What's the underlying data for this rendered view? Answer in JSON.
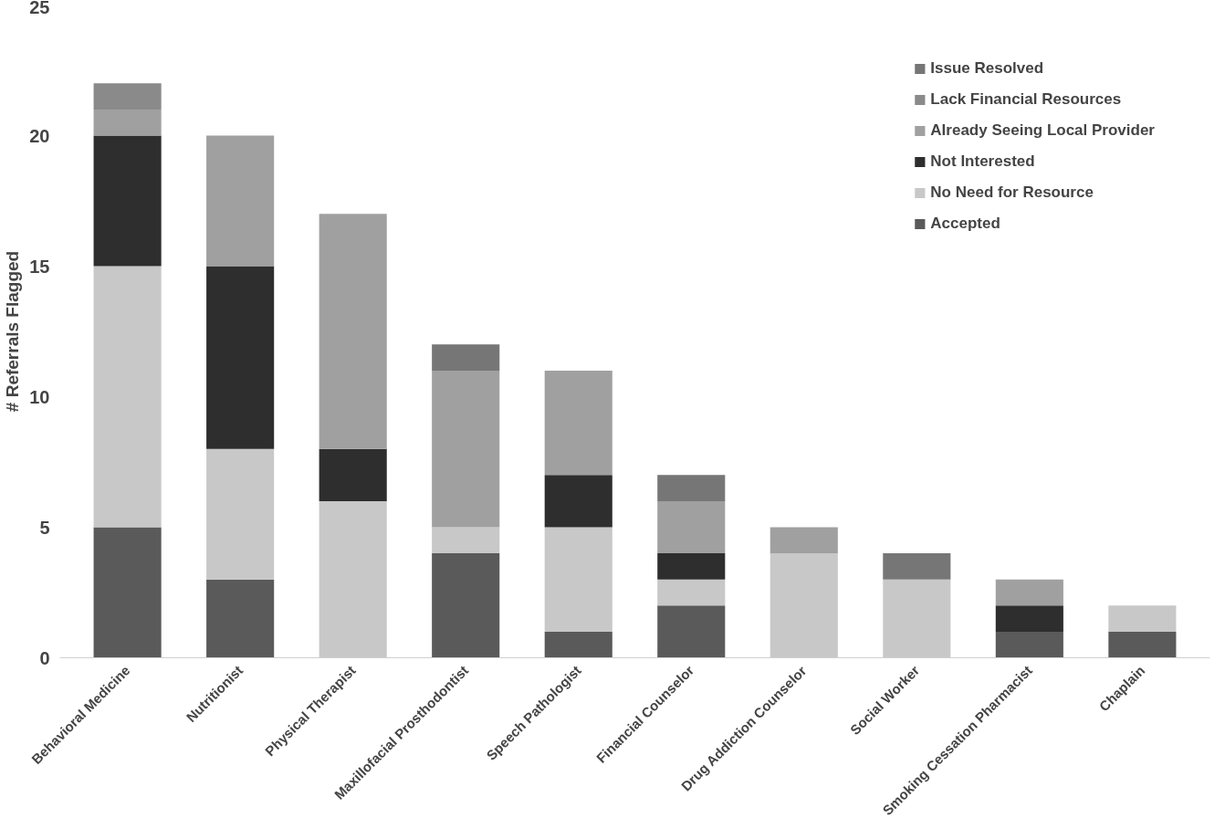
{
  "chart_data": {
    "type": "bar",
    "stacked": true,
    "ylabel": "# Referrals Flagged",
    "categories": [
      "Behavioral Medicine",
      "Nutritionist",
      "Physical Therapist",
      "Maxillofacial Prosthodontist",
      "Speech Pathologist",
      "Financial Counselor",
      "Drug Addiction Counselor",
      "Social Worker",
      "Smoking Cessation Pharmacist",
      "Chaplain"
    ],
    "series": [
      {
        "name": "Accepted",
        "color": "#5a5a5a",
        "values": [
          5,
          3,
          0,
          4,
          1,
          2,
          0,
          0,
          1,
          1
        ]
      },
      {
        "name": "No Need for Resource",
        "color": "#c8c8c8",
        "values": [
          10,
          5,
          6,
          1,
          4,
          1,
          4,
          3,
          0,
          1
        ]
      },
      {
        "name": "Not Interested",
        "color": "#2e2e2e",
        "values": [
          5,
          7,
          2,
          0,
          2,
          1,
          0,
          0,
          1,
          0
        ]
      },
      {
        "name": "Already Seeing Local Provider",
        "color": "#a0a0a0",
        "values": [
          1,
          5,
          9,
          6,
          4,
          2,
          1,
          0,
          1,
          0
        ]
      },
      {
        "name": "Lack Financial Resources",
        "color": "#8a8a8a",
        "values": [
          1,
          0,
          0,
          0,
          0,
          0,
          0,
          0,
          0,
          0
        ]
      },
      {
        "name": "Issue Resolved",
        "color": "#767676",
        "values": [
          0,
          0,
          0,
          1,
          0,
          1,
          0,
          1,
          0,
          0
        ]
      }
    ],
    "ylim": [
      0,
      25
    ],
    "yticks": [
      0,
      5,
      10,
      15,
      20,
      25
    ],
    "grid": false,
    "legend": "top right"
  }
}
